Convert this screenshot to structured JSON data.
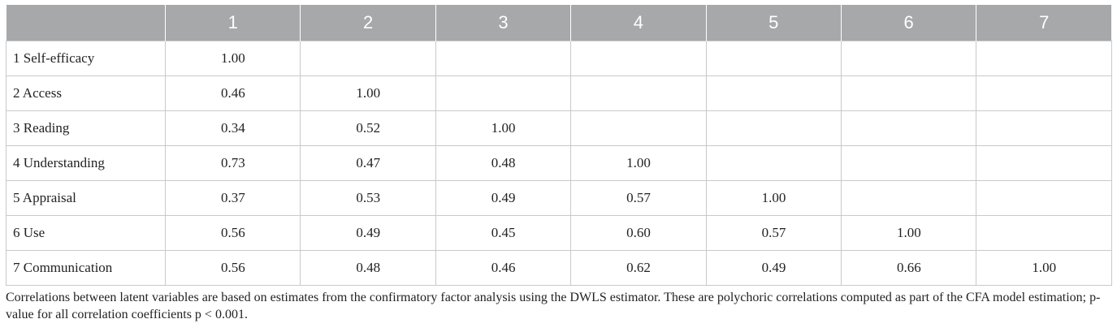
{
  "table": {
    "header": [
      "",
      "1",
      "2",
      "3",
      "4",
      "5",
      "6",
      "7"
    ],
    "rows": [
      {
        "label": "1 Self-efficacy",
        "values": [
          "1.00",
          "",
          "",
          "",
          "",
          "",
          ""
        ]
      },
      {
        "label": "2 Access",
        "values": [
          "0.46",
          "1.00",
          "",
          "",
          "",
          "",
          ""
        ]
      },
      {
        "label": "3 Reading",
        "values": [
          "0.34",
          "0.52",
          "1.00",
          "",
          "",
          "",
          ""
        ]
      },
      {
        "label": "4 Understanding",
        "values": [
          "0.73",
          "0.47",
          "0.48",
          "1.00",
          "",
          "",
          ""
        ]
      },
      {
        "label": "5 Appraisal",
        "values": [
          "0.37",
          "0.53",
          "0.49",
          "0.57",
          "1.00",
          "",
          ""
        ]
      },
      {
        "label": "6 Use",
        "values": [
          "0.56",
          "0.49",
          "0.45",
          "0.60",
          "0.57",
          "1.00",
          ""
        ]
      },
      {
        "label": "7 Communication",
        "values": [
          "0.56",
          "0.48",
          "0.46",
          "0.62",
          "0.49",
          "0.66",
          "1.00"
        ]
      }
    ]
  },
  "footnote": "Correlations between latent variables are based on estimates from the confirmatory factor analysis using the DWLS estimator. These are polychoric correlations computed as part of the CFA model estimation; p-value for all correlation coefficients p < 0.001.",
  "colors": {
    "header_bg": "#a7a8aa",
    "header_text": "#ffffff",
    "grid": "#c9c9c9"
  }
}
